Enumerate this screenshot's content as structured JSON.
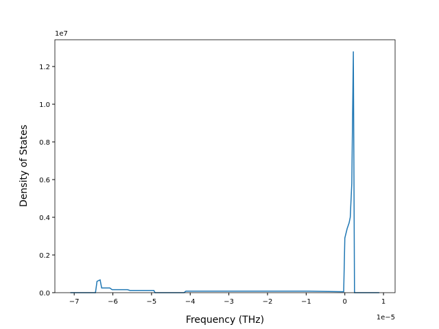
{
  "chart_data": {
    "type": "line",
    "x_label": "Frequency (THz)",
    "y_label": "Density of States",
    "x_offset_label": "1e−5",
    "y_offset_label": "1e7",
    "color": "#1f77b4",
    "x": [
      -7.1,
      -6.45,
      -6.41,
      -6.33,
      -6.29,
      -6.08,
      -6.02,
      -5.62,
      -5.56,
      -4.94,
      -4.91,
      -4.16,
      -4.11,
      -0.94,
      -0.03,
      0.0,
      0.06,
      0.11,
      0.14,
      0.18,
      0.22,
      0.25,
      0.89
    ],
    "values": [
      0,
      0,
      0.06,
      0.068,
      0.025,
      0.025,
      0.016,
      0.016,
      0.012,
      0.012,
      0,
      0,
      0.008,
      0.008,
      0.005,
      0.29,
      0.34,
      0.37,
      0.4,
      0.58,
      1.28,
      0,
      0
    ],
    "xlim": [
      -7.5,
      1.3
    ],
    "ylim": [
      0,
      1.342
    ],
    "xticks": [
      {
        "value": -7,
        "label": "−7"
      },
      {
        "value": -6,
        "label": "−6"
      },
      {
        "value": -5,
        "label": "−5"
      },
      {
        "value": -4,
        "label": "−4"
      },
      {
        "value": -3,
        "label": "−3"
      },
      {
        "value": -2,
        "label": "−2"
      },
      {
        "value": -1,
        "label": "−1"
      },
      0,
      1
    ],
    "yticks": [
      {
        "value": 0,
        "label": "0.0"
      },
      0.2,
      0.4,
      0.6,
      0.8,
      {
        "value": 1,
        "label": "1.0"
      },
      1.2
    ]
  }
}
